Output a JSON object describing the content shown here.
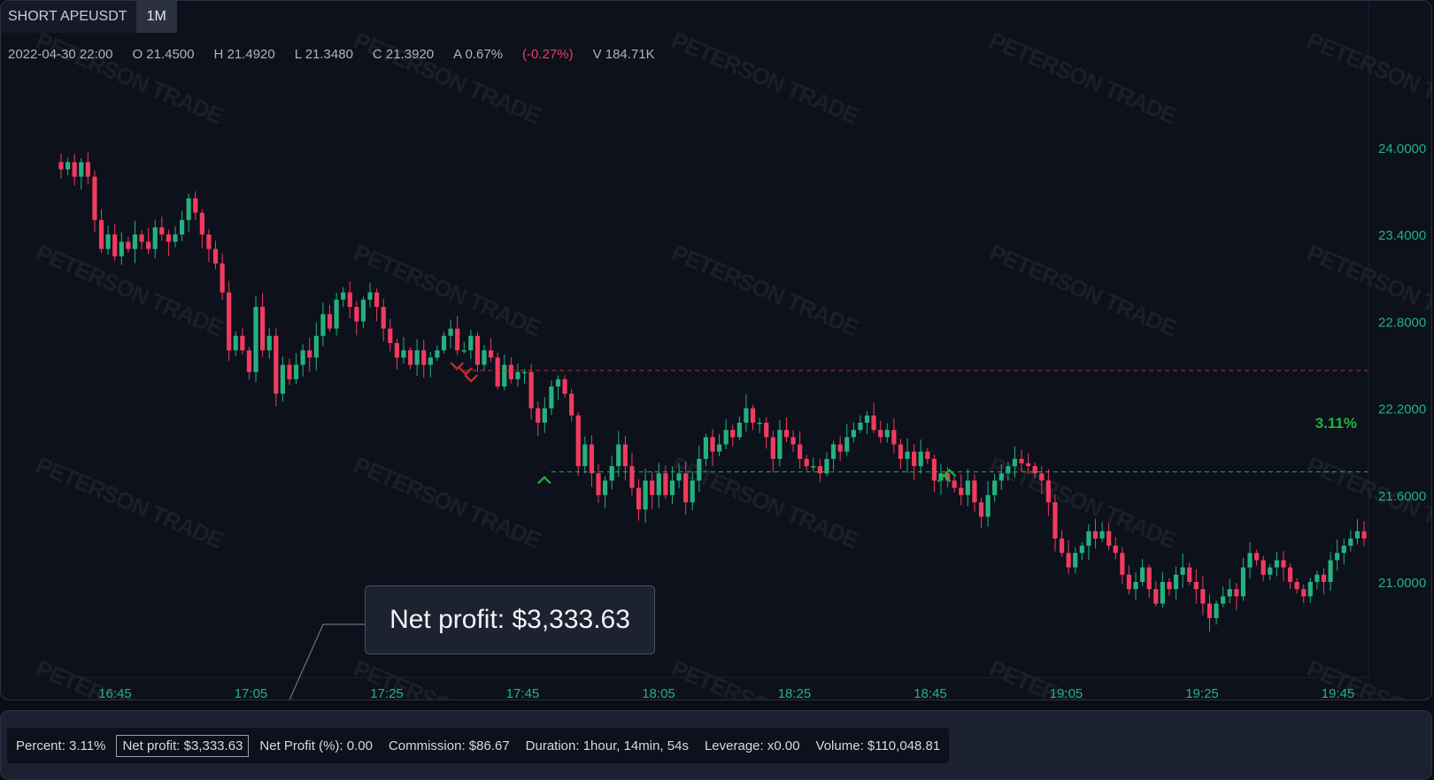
{
  "header": {
    "symbol": "SHORT APEUSDT",
    "timeframe": "1M"
  },
  "ohlc": {
    "date": "2022-04-30 22:00",
    "open": "O 21.4500",
    "high": "H 21.4920",
    "low": "L 21.3480",
    "close": "C 21.3920",
    "amplitude": "A 0.67%",
    "change": "(-0.27%)",
    "volume": "V 184.71K"
  },
  "watermark": "PETERSON TRADE",
  "colors": {
    "up": "#26b07f",
    "down": "#f23a5e",
    "entry_line": "#d12b2b",
    "exit_line": "#23b43c",
    "axis_text": "#26b07f",
    "time_text": "#26b07f"
  },
  "callout": {
    "text": "Net profit: $3,333.63"
  },
  "stats": {
    "percent": "Percent: 3.11%",
    "net_profit": "Net profit: $3,333.63",
    "net_profit_pct": "Net Profit (%): 0.00",
    "commission": "Commission: $86.67",
    "duration": "Duration: 1hour, 14min, 54s",
    "leverage": "Leverage: x0.00",
    "volume": "Volume: $110,048.81"
  },
  "chart_data": {
    "type": "candlestick",
    "ylim": [
      20.5,
      24.6
    ],
    "y_ticks": [
      "24.0000",
      "23.4000",
      "22.8000",
      "22.2000",
      "21.6000",
      "21.0000"
    ],
    "x_ticks": [
      "16:45",
      "17:05",
      "17:25",
      "17:45",
      "18:05",
      "18:25",
      "18:45",
      "19:05",
      "19:25",
      "19:45"
    ],
    "entry_price": 22.46,
    "exit_price": 21.76,
    "entry_time_index": 60,
    "exit_time_index": 73,
    "exit_signal_index": 132,
    "percent_label": "3.11%",
    "closes": [
      23.85,
      23.9,
      23.8,
      23.9,
      23.8,
      23.5,
      23.3,
      23.4,
      23.25,
      23.35,
      23.3,
      23.4,
      23.35,
      23.3,
      23.45,
      23.4,
      23.35,
      23.4,
      23.5,
      23.65,
      23.55,
      23.4,
      23.3,
      23.2,
      23.0,
      22.6,
      22.7,
      22.6,
      22.45,
      22.9,
      22.6,
      22.7,
      22.3,
      22.5,
      22.4,
      22.5,
      22.6,
      22.55,
      22.7,
      22.85,
      22.75,
      22.95,
      23.0,
      22.9,
      22.8,
      22.95,
      23.0,
      22.9,
      22.75,
      22.65,
      22.55,
      22.6,
      22.5,
      22.6,
      22.5,
      22.55,
      22.6,
      22.7,
      22.75,
      22.6,
      22.6,
      22.7,
      22.5,
      22.6,
      22.55,
      22.35,
      22.5,
      22.4,
      22.45,
      22.45,
      22.2,
      22.1,
      22.2,
      22.35,
      22.4,
      22.3,
      22.15,
      21.8,
      21.95,
      21.75,
      21.6,
      21.7,
      21.8,
      21.95,
      21.8,
      21.65,
      21.5,
      21.7,
      21.6,
      21.75,
      21.6,
      21.7,
      21.75,
      21.55,
      21.7,
      21.85,
      22.0,
      21.9,
      21.95,
      22.05,
      22.0,
      22.1,
      22.2,
      22.1,
      22.1,
      22.0,
      21.85,
      22.05,
      22.0,
      21.95,
      21.85,
      21.8,
      21.8,
      21.75,
      21.85,
      21.95,
      21.9,
      22.0,
      22.05,
      22.1,
      22.15,
      22.05,
      22.0,
      22.05,
      21.95,
      21.85,
      21.9,
      21.8,
      21.9,
      21.85,
      21.7,
      21.75,
      21.7,
      21.65,
      21.6,
      21.7,
      21.55,
      21.45,
      21.6,
      21.7,
      21.75,
      21.8,
      21.85,
      21.82,
      21.8,
      21.75,
      21.7,
      21.55,
      21.3,
      21.2,
      21.1,
      21.2,
      21.25,
      21.35,
      21.3,
      21.35,
      21.25,
      21.2,
      21.05,
      20.95,
      21.0,
      21.1,
      20.95,
      20.85,
      21.0,
      20.95,
      21.05,
      21.1,
      21.0,
      20.95,
      20.85,
      20.75,
      20.85,
      20.9,
      20.95,
      20.9,
      21.1,
      21.2,
      21.15,
      21.05,
      21.1,
      21.15,
      21.1,
      21.0,
      20.95,
      20.9,
      21.0,
      21.05,
      21.0,
      21.15,
      21.2,
      21.25,
      21.3,
      21.35,
      21.3
    ]
  }
}
